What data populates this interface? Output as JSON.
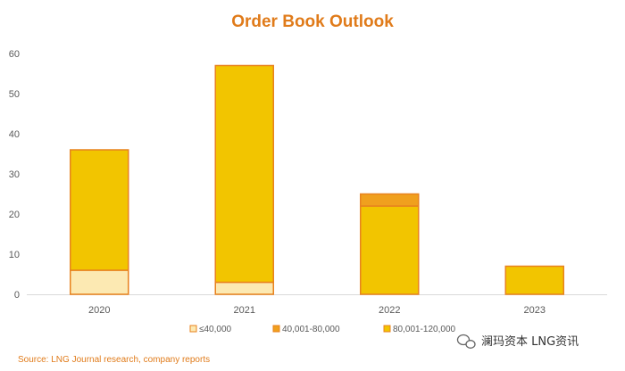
{
  "chart_data": {
    "type": "bar",
    "stacked": true,
    "title": "Order Book Outlook",
    "categories": [
      "2020",
      "2021",
      "2022",
      "2023"
    ],
    "ylim": [
      0,
      60
    ],
    "yticks": [
      0,
      10,
      20,
      30,
      40,
      50,
      60
    ],
    "grid": false,
    "legend_position": "bottom",
    "series": [
      {
        "name": "≤40,000",
        "color": "#FCE9B2",
        "values": [
          6,
          3,
          0,
          0
        ]
      },
      {
        "name": "40,001-80,000",
        "color": "#F0A01E",
        "values": [
          0,
          0,
          3,
          0
        ]
      },
      {
        "name": "80,001-120,000",
        "color": "#F2C500",
        "values": [
          30,
          54,
          22,
          7
        ]
      }
    ],
    "series_order_bottom_to_top": [
      "≤40,000",
      "80,001-120,000",
      "40,001-80,000"
    ],
    "bar_outline_color": "#E8821E",
    "source": "Source: LNG Journal research, company reports"
  },
  "watermark": {
    "icon": "wechat-icon",
    "text": "澜玛资本 LNG资讯"
  }
}
